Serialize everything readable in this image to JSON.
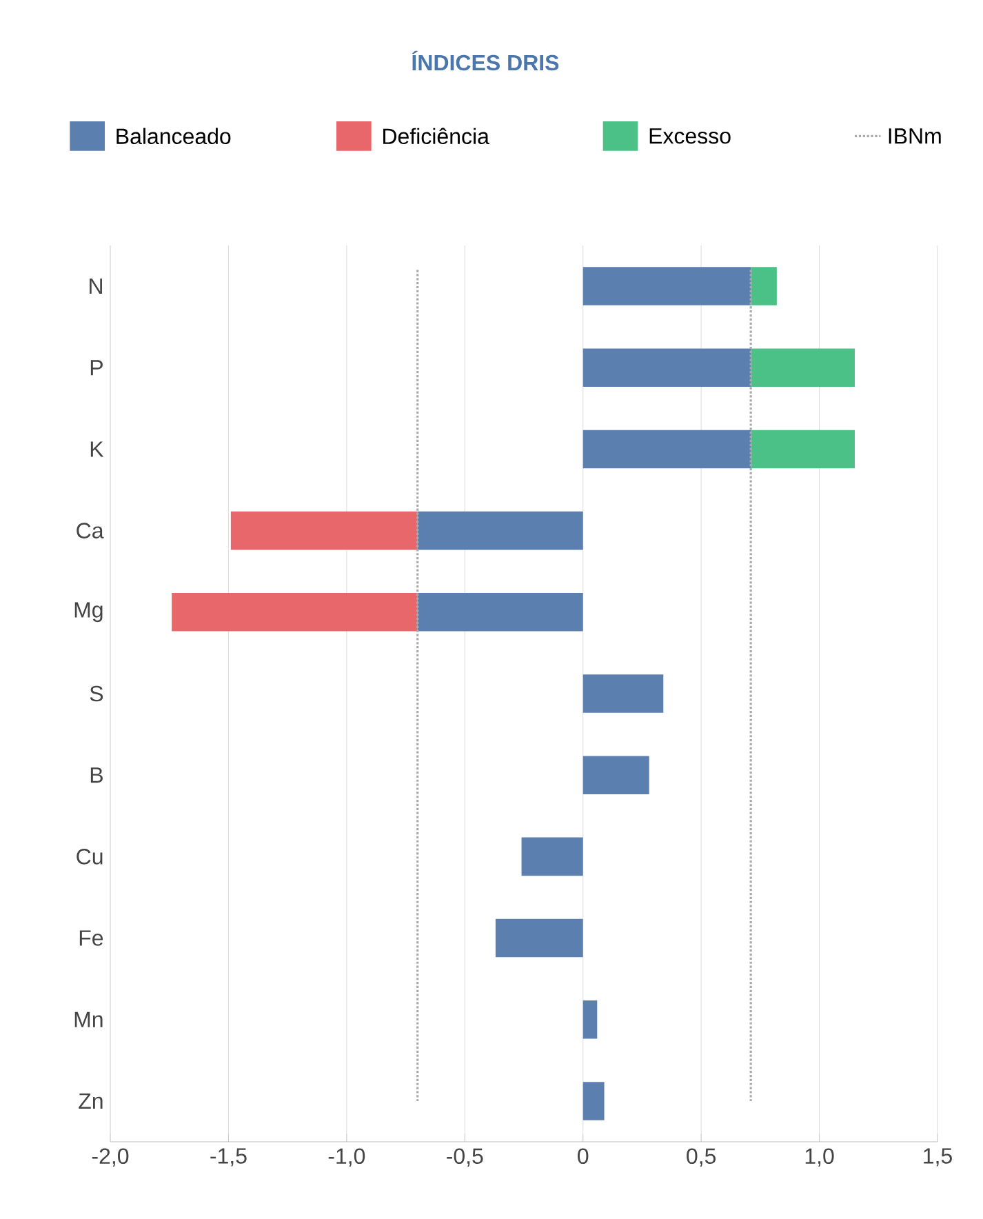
{
  "chart_data": {
    "type": "bar",
    "orientation": "horizontal",
    "stacked": true,
    "title": "ÍNDICES DRIS",
    "categories": [
      "N",
      "P",
      "K",
      "Ca",
      "Mg",
      "S",
      "B",
      "Cu",
      "Fe",
      "Mn",
      "Zn"
    ],
    "series": [
      {
        "name": "Balanceado",
        "color": "#5b80b0",
        "values": [
          0.71,
          0.71,
          0.71,
          -0.7,
          -0.7,
          0.34,
          0.28,
          -0.26,
          -0.37,
          0.06,
          0.09
        ]
      },
      {
        "name": "Deficiência",
        "color": "#e8676a",
        "values": [
          null,
          null,
          null,
          -0.79,
          -1.04,
          null,
          null,
          null,
          null,
          null,
          null
        ]
      },
      {
        "name": "Excesso",
        "color": "#4cc187",
        "values": [
          0.11,
          0.44,
          0.44,
          null,
          null,
          null,
          null,
          null,
          null,
          null,
          null
        ]
      }
    ],
    "xlim": [
      -2.0,
      1.5
    ],
    "xticks": [
      {
        "value": -2.0,
        "label": "-2,0"
      },
      {
        "value": -1.5,
        "label": "-1,5"
      },
      {
        "value": -1.0,
        "label": "-1,0"
      },
      {
        "value": -0.5,
        "label": "-0,5"
      },
      0,
      {
        "value": 0.5,
        "label": "0,5"
      },
      {
        "value": 1.0,
        "label": "1,0"
      },
      {
        "value": 1.5,
        "label": "1,5"
      }
    ],
    "ref_lines": [
      {
        "axis": "x",
        "value": -0.7,
        "label": "IBNm",
        "color": "#aaaaaa",
        "line_style": "dotted"
      },
      {
        "axis": "x",
        "value": 0.71,
        "color": "#aaaaaa",
        "line_style": "dotted"
      }
    ],
    "grid": "x",
    "legend": "top"
  }
}
